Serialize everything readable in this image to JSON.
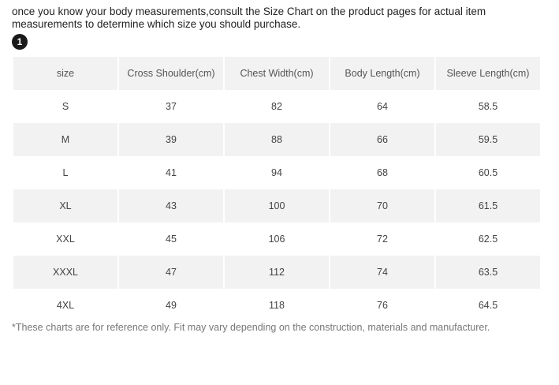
{
  "intro_text": "once you know your body measurements,consult the Size Chart on the product pages for actual item measurements to determine which size you should purchase.",
  "step_number": "1",
  "table": {
    "headers": [
      "size",
      "Cross Shoulder(cm)",
      "Chest Width(cm)",
      "Body Length(cm)",
      "Sleeve Length(cm)"
    ],
    "rows": [
      [
        "S",
        "37",
        "82",
        "64",
        "58.5"
      ],
      [
        "M",
        "39",
        "88",
        "66",
        "59.5"
      ],
      [
        "L",
        "41",
        "94",
        "68",
        "60.5"
      ],
      [
        "XL",
        "43",
        "100",
        "70",
        "61.5"
      ],
      [
        "XXL",
        "45",
        "106",
        "72",
        "62.5"
      ],
      [
        "XXXL",
        "47",
        "112",
        "74",
        "63.5"
      ],
      [
        "4XL",
        "49",
        "118",
        "76",
        "64.5"
      ]
    ]
  },
  "footnote": "*These charts are for reference only. Fit may vary depending on the construction, materials and manufacturer."
}
